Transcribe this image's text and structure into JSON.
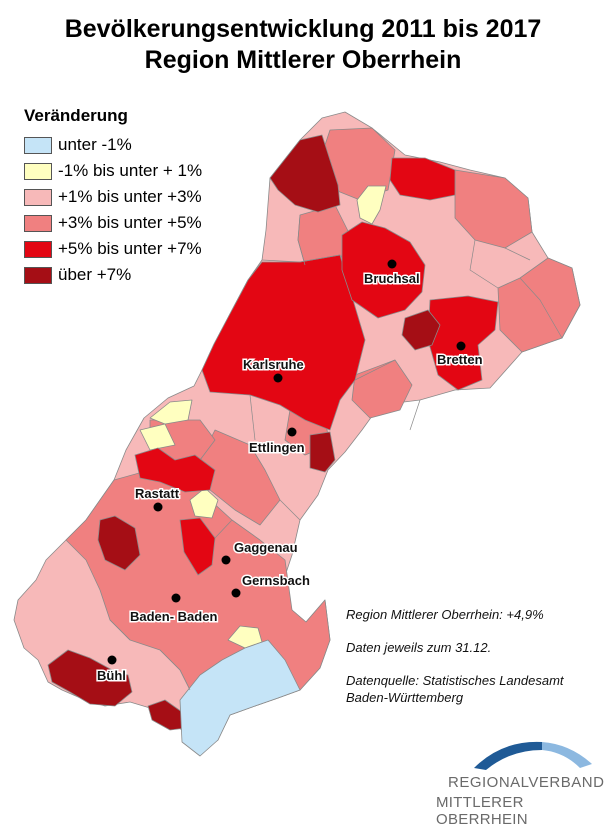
{
  "title": {
    "line1": "Bevölkerungsentwicklung 2011 bis 2017",
    "line2": "Region Mittlerer Oberrhein"
  },
  "legend": {
    "title": "Veränderung",
    "items": [
      {
        "label": "unter -1%",
        "color": "#c5e4f7"
      },
      {
        "label": "-1% bis unter + 1%",
        "color": "#ffffc0"
      },
      {
        "label": "+1% bis unter +3%",
        "color": "#f7b9b9"
      },
      {
        "label": "+3% bis unter +5%",
        "color": "#f08080"
      },
      {
        "label": "+5% bis unter +7%",
        "color": "#e30613"
      },
      {
        "label": "über +7%",
        "color": "#a50e15"
      }
    ]
  },
  "towns": {
    "bruchsal": "Bruchsal",
    "bretten": "Bretten",
    "karlsruhe": "Karlsruhe",
    "ettlingen": "Ettlingen",
    "rastatt": "Rastatt",
    "gaggenau": "Gaggenau",
    "gernsbach": "Gernsbach",
    "baden_baden": "Baden- Baden",
    "buehl": "Bühl"
  },
  "notes": {
    "region_change": "Region Mittlerer Oberrhein: +4,9%",
    "date": "Daten jeweils zum 31.12.",
    "source_line1": "Datenquelle: Statistisches Landesamt",
    "source_line2": "Baden-Württemberg"
  },
  "logo": {
    "line1": "REGIONALVERBAND",
    "line2": "MITTLERER OBERRHEIN",
    "color_dark": "#1f5a96",
    "color_light": "#8cb8e0"
  }
}
